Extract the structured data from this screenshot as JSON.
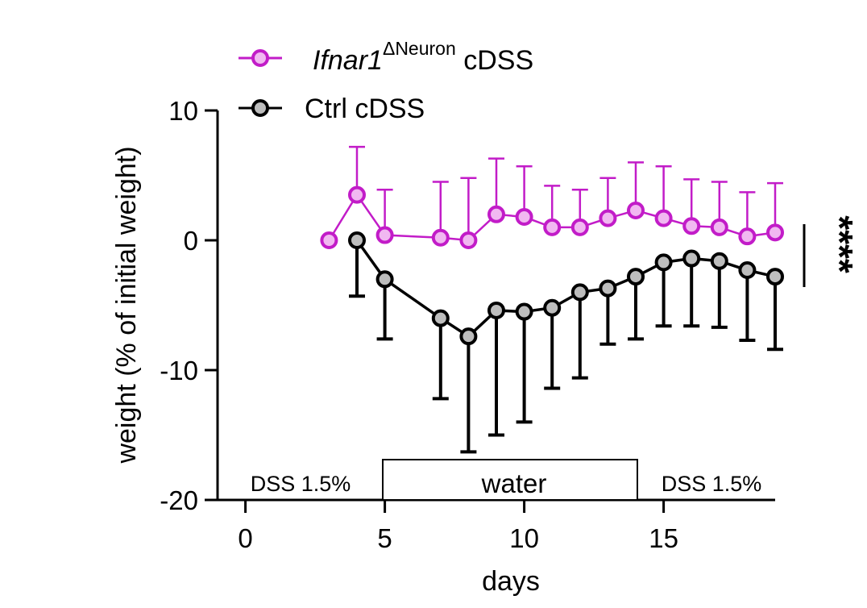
{
  "chart_data": {
    "type": "line",
    "xlabel": "days",
    "ylabel": "weight (% of initial weight)",
    "xlim": [
      -1,
      19
    ],
    "ylim": [
      -20,
      10
    ],
    "xticks": [
      "0",
      "5",
      "10",
      "15"
    ],
    "yticks": [
      "10",
      "0",
      "-10",
      "-20"
    ],
    "series": [
      {
        "name_italic": "Ifnar1",
        "name_sup": "ΔNeuron",
        "name_rest": " cDSS",
        "color": "#c21cc8",
        "fill": "#f1b8f1",
        "err_dir": "up",
        "x": [
          3,
          4,
          5,
          7,
          8,
          9,
          10,
          11,
          12,
          13,
          14,
          15,
          16,
          17,
          18,
          19
        ],
        "y": [
          0.0,
          3.5,
          0.4,
          0.2,
          0.0,
          2.0,
          1.8,
          1.0,
          1.0,
          1.7,
          2.3,
          1.7,
          1.1,
          1.0,
          0.3,
          0.6
        ],
        "err": [
          0,
          3.7,
          3.5,
          4.3,
          4.8,
          4.3,
          3.9,
          3.2,
          2.9,
          3.1,
          3.7,
          4.0,
          3.6,
          3.5,
          3.4,
          3.8
        ]
      },
      {
        "name_italic": "",
        "name_sup": "",
        "name_rest": "Ctrl cDSS",
        "color": "#000000",
        "fill": "#bdbdbd",
        "err_dir": "down",
        "x": [
          4,
          5,
          7,
          8,
          9,
          10,
          11,
          12,
          13,
          14,
          15,
          16,
          17,
          18,
          19
        ],
        "y": [
          0.0,
          -3.0,
          -6.0,
          -7.4,
          -5.4,
          -5.5,
          -5.2,
          -4.0,
          -3.7,
          -2.8,
          -1.7,
          -1.4,
          -1.6,
          -2.3,
          -2.8
        ],
        "err": [
          4.3,
          4.6,
          6.2,
          8.9,
          9.6,
          8.5,
          6.2,
          6.6,
          4.3,
          4.8,
          4.9,
          5.2,
          5.1,
          5.4,
          5.6
        ]
      }
    ],
    "annotations": {
      "significance": "****",
      "treatment_periods": [
        {
          "label": "DSS 1.5%",
          "from": -1,
          "to": 5,
          "boxed": false
        },
        {
          "label": "water",
          "from": 5,
          "to": 14,
          "boxed": true
        },
        {
          "label": "DSS 1.5%",
          "from": 14,
          "to": 19,
          "boxed": false
        }
      ]
    }
  }
}
